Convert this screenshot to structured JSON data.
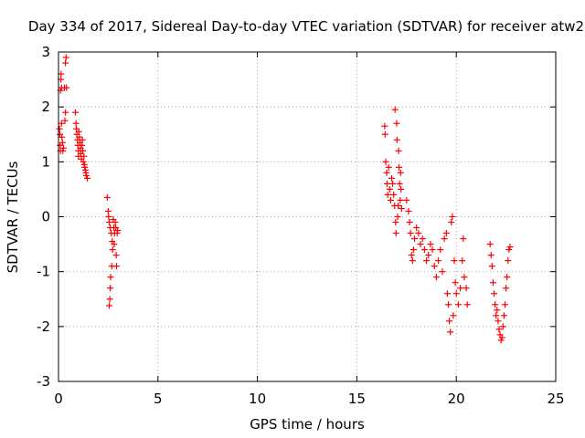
{
  "chart_data": {
    "type": "scatter",
    "title": "Day 334 of 2017, Sidereal Day-to-day VTEC variation (SDTVAR) for receiver atw2",
    "xlabel": "GPS time / hours",
    "ylabel": "SDTVAR / TECUs",
    "xlim": [
      0,
      25
    ],
    "ylim": [
      -3,
      3
    ],
    "xticks": [
      0,
      5,
      10,
      15,
      20,
      25
    ],
    "yticks": [
      -3,
      -2,
      -1,
      0,
      1,
      2,
      3
    ],
    "grid": true,
    "marker": "+",
    "color": "#ff0000",
    "series": [
      {
        "name": "SDTVAR",
        "points": [
          [
            0.05,
            1.6
          ],
          [
            0.07,
            1.5
          ],
          [
            0.08,
            1.3
          ],
          [
            0.1,
            1.2
          ],
          [
            0.1,
            2.3
          ],
          [
            0.12,
            2.5
          ],
          [
            0.13,
            2.6
          ],
          [
            0.15,
            2.35
          ],
          [
            0.15,
            1.7
          ],
          [
            0.17,
            1.45
          ],
          [
            0.2,
            1.35
          ],
          [
            0.22,
            1.2
          ],
          [
            0.25,
            1.25
          ],
          [
            0.3,
            2.35
          ],
          [
            0.32,
            1.75
          ],
          [
            0.35,
            1.9
          ],
          [
            0.35,
            2.8
          ],
          [
            0.38,
            2.9
          ],
          [
            0.4,
            2.35
          ],
          [
            0.85,
            1.9
          ],
          [
            0.88,
            1.7
          ],
          [
            0.9,
            1.6
          ],
          [
            0.92,
            1.5
          ],
          [
            0.95,
            1.4
          ],
          [
            0.97,
            1.3
          ],
          [
            1.0,
            1.2
          ],
          [
            1.0,
            1.1
          ],
          [
            1.02,
            1.55
          ],
          [
            1.05,
            1.45
          ],
          [
            1.08,
            1.35
          ],
          [
            1.1,
            1.25
          ],
          [
            1.12,
            1.15
          ],
          [
            1.15,
            1.05
          ],
          [
            1.18,
            1.3
          ],
          [
            1.2,
            1.4
          ],
          [
            1.22,
            1.2
          ],
          [
            1.25,
            1.0
          ],
          [
            1.28,
            1.1
          ],
          [
            1.3,
            0.95
          ],
          [
            1.32,
            0.9
          ],
          [
            1.35,
            0.85
          ],
          [
            1.38,
            0.8
          ],
          [
            1.4,
            0.75
          ],
          [
            1.45,
            0.7
          ],
          [
            2.45,
            0.35
          ],
          [
            2.5,
            0.1
          ],
          [
            2.52,
            0.0
          ],
          [
            2.55,
            -0.1
          ],
          [
            2.55,
            -1.62
          ],
          [
            2.58,
            -1.5
          ],
          [
            2.6,
            -1.3
          ],
          [
            2.6,
            -0.2
          ],
          [
            2.62,
            -1.1
          ],
          [
            2.65,
            -0.3
          ],
          [
            2.68,
            -0.9
          ],
          [
            2.7,
            -0.45
          ],
          [
            2.72,
            -0.6
          ],
          [
            2.75,
            -0.05
          ],
          [
            2.78,
            -0.2
          ],
          [
            2.8,
            -0.5
          ],
          [
            2.82,
            -0.3
          ],
          [
            2.85,
            -0.1
          ],
          [
            2.88,
            -0.2
          ],
          [
            2.9,
            -0.7
          ],
          [
            2.92,
            -0.9
          ],
          [
            2.95,
            -0.3
          ],
          [
            2.97,
            -0.25
          ],
          [
            16.4,
            1.65
          ],
          [
            16.42,
            1.5
          ],
          [
            16.45,
            1.0
          ],
          [
            16.5,
            0.8
          ],
          [
            16.52,
            0.6
          ],
          [
            16.55,
            0.4
          ],
          [
            16.6,
            0.9
          ],
          [
            16.65,
            0.5
          ],
          [
            16.7,
            0.3
          ],
          [
            16.75,
            0.7
          ],
          [
            16.8,
            0.6
          ],
          [
            16.85,
            0.4
          ],
          [
            16.9,
            0.2
          ],
          [
            16.92,
            1.95
          ],
          [
            16.95,
            -0.1
          ],
          [
            16.97,
            -0.3
          ],
          [
            17.0,
            1.7
          ],
          [
            17.02,
            1.4
          ],
          [
            17.05,
            0.0
          ],
          [
            17.08,
            0.2
          ],
          [
            17.1,
            1.2
          ],
          [
            17.12,
            0.9
          ],
          [
            17.15,
            0.6
          ],
          [
            17.18,
            0.3
          ],
          [
            17.2,
            0.8
          ],
          [
            17.22,
            0.5
          ],
          [
            17.25,
            0.15
          ],
          [
            17.5,
            0.3
          ],
          [
            17.6,
            0.1
          ],
          [
            17.65,
            -0.1
          ],
          [
            17.7,
            -0.3
          ],
          [
            17.75,
            -0.7
          ],
          [
            17.8,
            -0.8
          ],
          [
            17.85,
            -0.6
          ],
          [
            17.9,
            -0.4
          ],
          [
            18.0,
            -0.2
          ],
          [
            18.1,
            -0.3
          ],
          [
            18.2,
            -0.5
          ],
          [
            18.3,
            -0.4
          ],
          [
            18.4,
            -0.6
          ],
          [
            18.5,
            -0.8
          ],
          [
            18.6,
            -0.7
          ],
          [
            18.7,
            -0.5
          ],
          [
            18.8,
            -0.6
          ],
          [
            18.9,
            -0.9
          ],
          [
            19.0,
            -1.1
          ],
          [
            19.1,
            -0.8
          ],
          [
            19.2,
            -0.6
          ],
          [
            19.3,
            -1.0
          ],
          [
            19.4,
            -0.4
          ],
          [
            19.5,
            -0.3
          ],
          [
            19.55,
            -1.4
          ],
          [
            19.6,
            -1.6
          ],
          [
            19.65,
            -1.9
          ],
          [
            19.7,
            -2.1
          ],
          [
            19.75,
            -0.1
          ],
          [
            19.8,
            0.0
          ],
          [
            19.85,
            -1.8
          ],
          [
            19.9,
            -0.8
          ],
          [
            19.95,
            -1.2
          ],
          [
            20.0,
            -1.4
          ],
          [
            20.1,
            -1.6
          ],
          [
            20.2,
            -1.3
          ],
          [
            20.3,
            -0.8
          ],
          [
            20.35,
            -0.4
          ],
          [
            20.4,
            -1.1
          ],
          [
            20.5,
            -1.3
          ],
          [
            20.55,
            -1.6
          ],
          [
            21.7,
            -0.5
          ],
          [
            21.75,
            -0.7
          ],
          [
            21.8,
            -0.9
          ],
          [
            21.85,
            -1.2
          ],
          [
            21.9,
            -1.4
          ],
          [
            21.95,
            -1.6
          ],
          [
            22.0,
            -1.8
          ],
          [
            22.05,
            -1.7
          ],
          [
            22.1,
            -1.9
          ],
          [
            22.15,
            -2.05
          ],
          [
            22.2,
            -2.15
          ],
          [
            22.25,
            -2.25
          ],
          [
            22.3,
            -2.2
          ],
          [
            22.35,
            -2.0
          ],
          [
            22.4,
            -1.8
          ],
          [
            22.45,
            -1.6
          ],
          [
            22.5,
            -1.3
          ],
          [
            22.55,
            -1.1
          ],
          [
            22.6,
            -0.8
          ],
          [
            22.65,
            -0.6
          ],
          [
            22.7,
            -0.55
          ]
        ]
      }
    ]
  }
}
